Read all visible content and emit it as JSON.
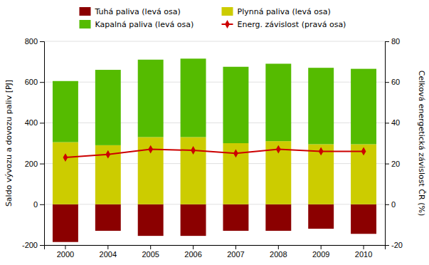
{
  "chart_data": {
    "type": "bar",
    "stacked": true,
    "grid": true,
    "legend": "top",
    "ylabel": "Saldo vývozu a dovozu paliv [PJ]",
    "y2label": "Celková energetická závislost ČR (%)",
    "categories": [
      "2000",
      "2004",
      "2005",
      "2006",
      "2007",
      "2008",
      "2009",
      "2010"
    ],
    "ylim": [
      -200,
      800
    ],
    "yticks": [
      -200,
      0,
      200,
      400,
      600,
      800
    ],
    "y2lim": [
      -20,
      80
    ],
    "y2ticks": [
      -20,
      0,
      20,
      40,
      60,
      80
    ],
    "series": [
      {
        "name": "Tuhá paliva (levá osa)",
        "color": "#8B0000",
        "values": [
          -185,
          -130,
          -155,
          -155,
          -130,
          -130,
          -120,
          -145
        ]
      },
      {
        "name": "Plynná paliva (levá osa)",
        "color": "#CCCC00",
        "values": [
          305,
          290,
          330,
          330,
          300,
          310,
          295,
          295
        ]
      },
      {
        "name": "Kapalná paliva (levá osa)",
        "color": "#55BB00",
        "values": [
          300,
          370,
          380,
          385,
          375,
          380,
          375,
          370
        ]
      },
      {
        "name": "Energ. závislost (pravá osa)",
        "type": "line",
        "axis": "y2",
        "marker": "diamond",
        "color": "#CC0000",
        "values": [
          23,
          24.5,
          27,
          26.5,
          25,
          27,
          26,
          26
        ]
      }
    ]
  }
}
